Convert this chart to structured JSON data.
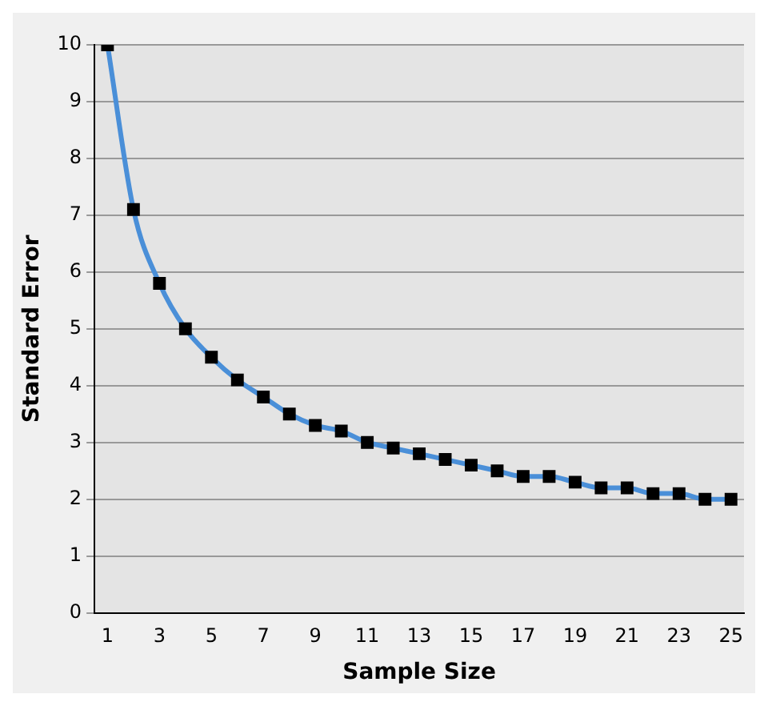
{
  "chart_data": {
    "type": "line",
    "xlabel": "Sample Size",
    "ylabel": "Standard Error",
    "x": [
      1,
      2,
      3,
      4,
      5,
      6,
      7,
      8,
      9,
      10,
      11,
      12,
      13,
      14,
      15,
      16,
      17,
      18,
      19,
      20,
      21,
      22,
      23,
      24,
      25
    ],
    "xlim": [
      0.5,
      25.5
    ],
    "xticks": [
      1,
      3,
      5,
      7,
      9,
      11,
      13,
      15,
      17,
      19,
      21,
      23,
      25
    ],
    "series": [
      {
        "color": "#4a8fd8",
        "values": [
          10,
          7.1,
          5.8,
          5.0,
          4.5,
          4.1,
          3.8,
          3.5,
          3.3,
          3.2,
          3.0,
          2.9,
          2.8,
          2.7,
          2.6,
          2.5,
          2.4,
          2.4,
          2.3,
          2.2,
          2.2,
          2.1,
          2.1,
          2.0,
          2.0
        ]
      }
    ],
    "ylim": [
      0,
      10
    ],
    "yticks": [
      0,
      1,
      2,
      3,
      4,
      5,
      6,
      7,
      8,
      9,
      10
    ],
    "grid": "y",
    "legend": false,
    "marker": "square",
    "line_style": "solid"
  }
}
